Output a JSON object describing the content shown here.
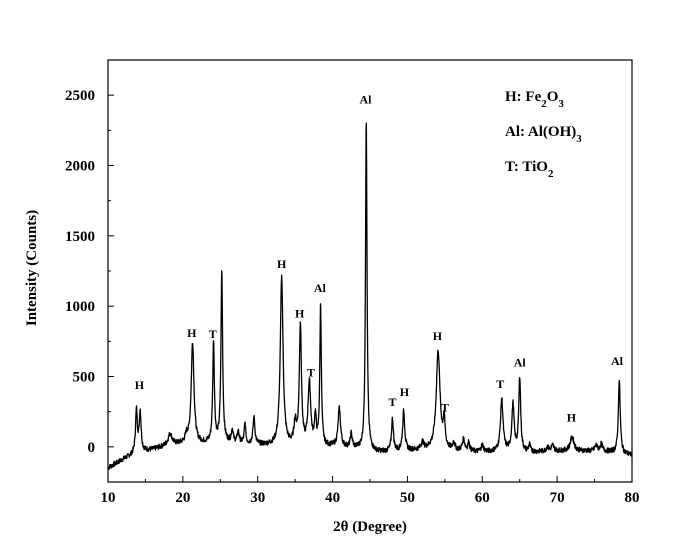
{
  "chart_data": {
    "type": "line",
    "xlabel": "2θ (Degree)",
    "ylabel": "Intensity (Counts)",
    "xlim": [
      10,
      80
    ],
    "ylim": [
      -250,
      2750
    ],
    "xticks": [
      10,
      20,
      30,
      40,
      50,
      60,
      70,
      80
    ],
    "yticks": [
      0,
      500,
      1000,
      1500,
      2000,
      2500
    ],
    "grid": false,
    "legend": [
      {
        "prefix": "H: Fe",
        "sub1": "2",
        "mid": "O",
        "sub2": "3"
      },
      {
        "prefix": "Al: Al(OH)",
        "sub1": "3",
        "mid": "",
        "sub2": ""
      },
      {
        "prefix": "T: TiO",
        "sub1": "2",
        "mid": "",
        "sub2": ""
      }
    ],
    "legend_position": "top-right",
    "line_color": "#000000",
    "baseline": [
      [
        10,
        -150
      ],
      [
        12,
        -90
      ],
      [
        14,
        -40
      ],
      [
        16,
        -20
      ],
      [
        18,
        10
      ],
      [
        20,
        20
      ],
      [
        22,
        20
      ],
      [
        25,
        30
      ],
      [
        28,
        20
      ],
      [
        31,
        10
      ],
      [
        34,
        0
      ],
      [
        37,
        -10
      ],
      [
        40,
        0
      ],
      [
        43,
        -15
      ],
      [
        46,
        -40
      ],
      [
        50,
        -30
      ],
      [
        53,
        -20
      ],
      [
        56,
        -30
      ],
      [
        60,
        -40
      ],
      [
        63,
        -30
      ],
      [
        66,
        -40
      ],
      [
        70,
        -30
      ],
      [
        74,
        -30
      ],
      [
        77,
        -35
      ],
      [
        80,
        -60
      ]
    ],
    "peaks": [
      {
        "x": 13.8,
        "y": 300,
        "w": 0.15
      },
      {
        "x": 14.3,
        "y": 280,
        "w": 0.15
      },
      {
        "x": 18.3,
        "y": 80,
        "w": 0.3
      },
      {
        "x": 20.5,
        "y": 50,
        "w": 0.2
      },
      {
        "x": 21.3,
        "y": 720,
        "w": 0.22
      },
      {
        "x": 24.1,
        "y": 720,
        "w": 0.13
      },
      {
        "x": 25.2,
        "y": 1210,
        "w": 0.13
      },
      {
        "x": 26.6,
        "y": 90,
        "w": 0.15
      },
      {
        "x": 27.4,
        "y": 80,
        "w": 0.15
      },
      {
        "x": 28.3,
        "y": 140,
        "w": 0.12
      },
      {
        "x": 29.5,
        "y": 190,
        "w": 0.15
      },
      {
        "x": 33.2,
        "y": 1200,
        "w": 0.22
      },
      {
        "x": 35.0,
        "y": 150,
        "w": 0.2
      },
      {
        "x": 35.7,
        "y": 860,
        "w": 0.17
      },
      {
        "x": 36.9,
        "y": 450,
        "w": 0.22
      },
      {
        "x": 37.7,
        "y": 200,
        "w": 0.15
      },
      {
        "x": 38.4,
        "y": 1000,
        "w": 0.12
      },
      {
        "x": 40.9,
        "y": 270,
        "w": 0.2
      },
      {
        "x": 42.5,
        "y": 100,
        "w": 0.15
      },
      {
        "x": 44.5,
        "y": 2340,
        "w": 0.12
      },
      {
        "x": 48.0,
        "y": 230,
        "w": 0.15
      },
      {
        "x": 49.5,
        "y": 280,
        "w": 0.17
      },
      {
        "x": 52.0,
        "y": 50,
        "w": 0.2
      },
      {
        "x": 54.1,
        "y": 700,
        "w": 0.3
      },
      {
        "x": 54.9,
        "y": 190,
        "w": 0.15
      },
      {
        "x": 56.2,
        "y": 60,
        "w": 0.15
      },
      {
        "x": 57.5,
        "y": 80,
        "w": 0.2
      },
      {
        "x": 58.2,
        "y": 60,
        "w": 0.15
      },
      {
        "x": 60.0,
        "y": 50,
        "w": 0.2
      },
      {
        "x": 62.6,
        "y": 370,
        "w": 0.2
      },
      {
        "x": 64.1,
        "y": 330,
        "w": 0.18
      },
      {
        "x": 65.0,
        "y": 530,
        "w": 0.15
      },
      {
        "x": 66.3,
        "y": 50,
        "w": 0.15
      },
      {
        "x": 68.7,
        "y": 30,
        "w": 0.2
      },
      {
        "x": 69.4,
        "y": 40,
        "w": 0.2
      },
      {
        "x": 72.0,
        "y": 100,
        "w": 0.3
      },
      {
        "x": 75.2,
        "y": 40,
        "w": 0.2
      },
      {
        "x": 75.9,
        "y": 50,
        "w": 0.2
      },
      {
        "x": 78.3,
        "y": 520,
        "w": 0.15
      }
    ],
    "annotations": [
      {
        "text": "H",
        "x": 14.2,
        "y": 410
      },
      {
        "text": "H",
        "x": 21.2,
        "y": 780
      },
      {
        "text": "T",
        "x": 24.0,
        "y": 775
      },
      {
        "text": "H",
        "x": 33.2,
        "y": 1270
      },
      {
        "text": "H",
        "x": 35.6,
        "y": 920
      },
      {
        "text": "Al",
        "x": 38.3,
        "y": 1100
      },
      {
        "text": "T",
        "x": 37.1,
        "y": 500
      },
      {
        "text": "Al",
        "x": 44.4,
        "y": 2440
      },
      {
        "text": "T",
        "x": 48.0,
        "y": 290
      },
      {
        "text": "H",
        "x": 49.6,
        "y": 360
      },
      {
        "text": "H",
        "x": 54.0,
        "y": 760
      },
      {
        "text": "T",
        "x": 55.0,
        "y": 250
      },
      {
        "text": "T",
        "x": 62.4,
        "y": 420
      },
      {
        "text": "Al",
        "x": 65.0,
        "y": 570
      },
      {
        "text": "H",
        "x": 71.9,
        "y": 180
      },
      {
        "text": "Al",
        "x": 78.0,
        "y": 580
      }
    ]
  }
}
